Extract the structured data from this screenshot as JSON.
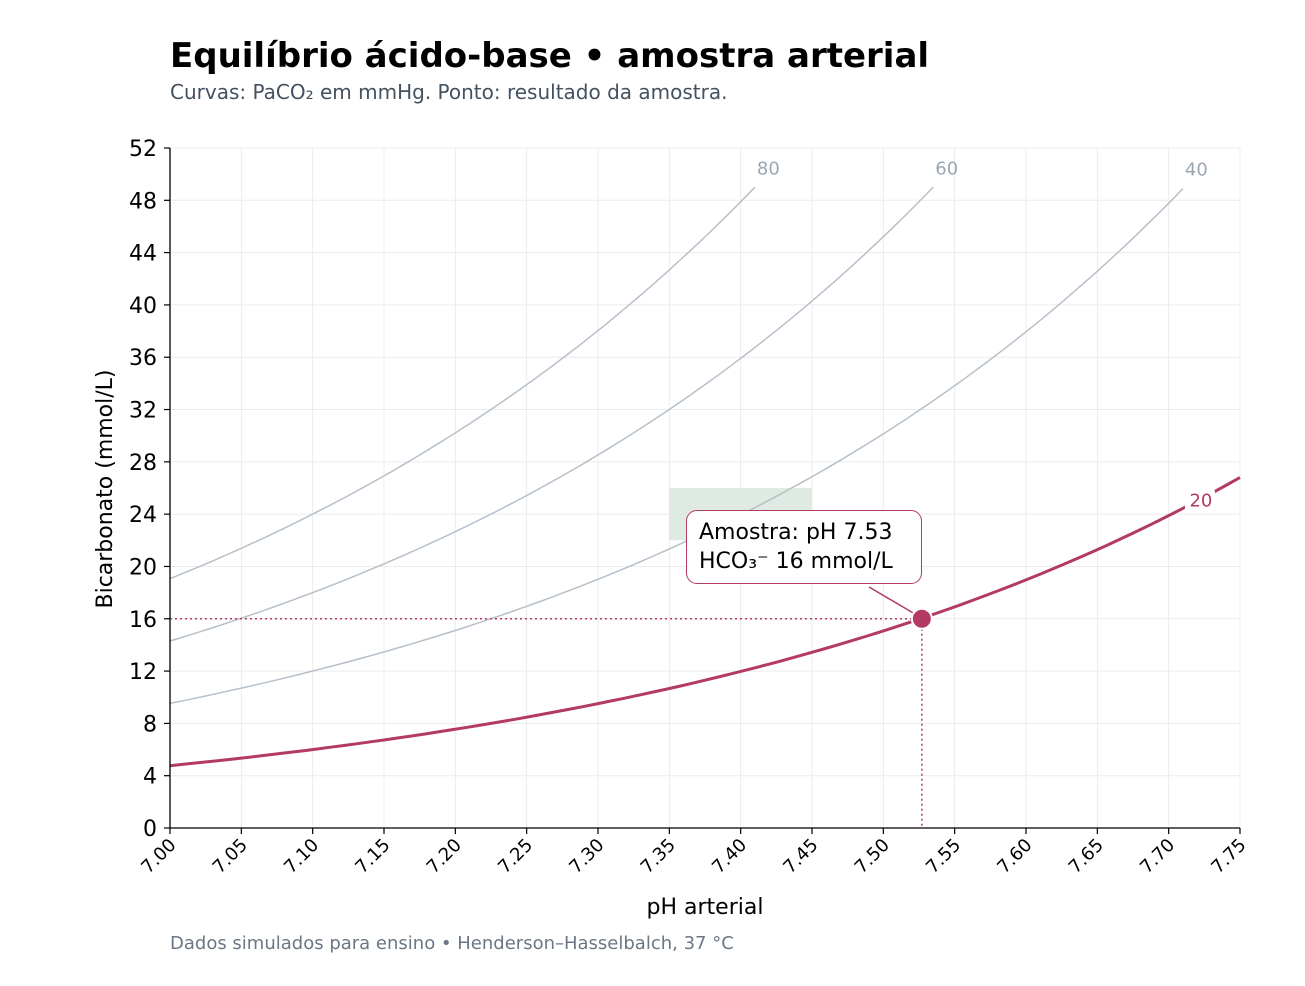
{
  "header": {
    "title": "Equilíbrio ácido-base • amostra arterial",
    "subtitle": "Curvas: PaCO₂ em mmHg. Ponto: resultado da amostra."
  },
  "footer": {
    "note": "Dados simulados para ensino • Henderson–Hasselbalch, 37 °C"
  },
  "annotation": {
    "line1": "Amostra: pH 7.53",
    "line2": "HCO₃⁻ 16 mmol/L"
  },
  "chart_data": {
    "type": "line",
    "title": "Equilíbrio ácido-base • amostra arterial",
    "xlabel": "pH arterial",
    "ylabel": "Bicarbonato (mmol/L)",
    "xlim": [
      7.0,
      7.75
    ],
    "ylim": [
      0,
      52
    ],
    "x_ticks": [
      "7.00",
      "7.05",
      "7.10",
      "7.15",
      "7.20",
      "7.25",
      "7.30",
      "7.35",
      "7.40",
      "7.45",
      "7.50",
      "7.55",
      "7.60",
      "7.65",
      "7.70",
      "7.75"
    ],
    "y_ticks": [
      "0",
      "4",
      "8",
      "12",
      "16",
      "20",
      "24",
      "28",
      "32",
      "36",
      "40",
      "44",
      "48",
      "52"
    ],
    "grid": true,
    "normal_range": {
      "ph": [
        7.35,
        7.45
      ],
      "hco3": [
        22,
        26
      ]
    },
    "series": [
      {
        "name": "80",
        "pco2": 80,
        "color": "#b6c0ca",
        "x": [
          7.0,
          7.1,
          7.2,
          7.3,
          7.4,
          7.41
        ],
        "values": [
          19.2,
          24.2,
          30.4,
          38.3,
          48.2,
          49.3
        ]
      },
      {
        "name": "60",
        "pco2": 60,
        "color": "#b6c0ca",
        "x": [
          7.0,
          7.1,
          7.2,
          7.3,
          7.4,
          7.5,
          7.535
        ],
        "values": [
          14.4,
          18.1,
          22.8,
          28.7,
          36.2,
          45.5,
          49.3
        ]
      },
      {
        "name": "40",
        "pco2": 40,
        "color": "#b6c0ca",
        "x": [
          7.0,
          7.1,
          7.2,
          7.3,
          7.4,
          7.5,
          7.6,
          7.7,
          7.71
        ],
        "values": [
          9.6,
          12.1,
          15.2,
          19.1,
          24.1,
          30.3,
          38.2,
          48.1,
          49.2
        ]
      },
      {
        "name": "20",
        "pco2": 20,
        "color": "#b33a64",
        "x": [
          7.0,
          7.1,
          7.2,
          7.3,
          7.4,
          7.5,
          7.6,
          7.7,
          7.75
        ],
        "values": [
          4.8,
          6.0,
          7.6,
          9.6,
          12.0,
          15.2,
          19.1,
          24.0,
          27.0
        ]
      }
    ],
    "sample": {
      "ph": 7.527,
      "hco3": 16,
      "color": "#b33a64"
    }
  }
}
